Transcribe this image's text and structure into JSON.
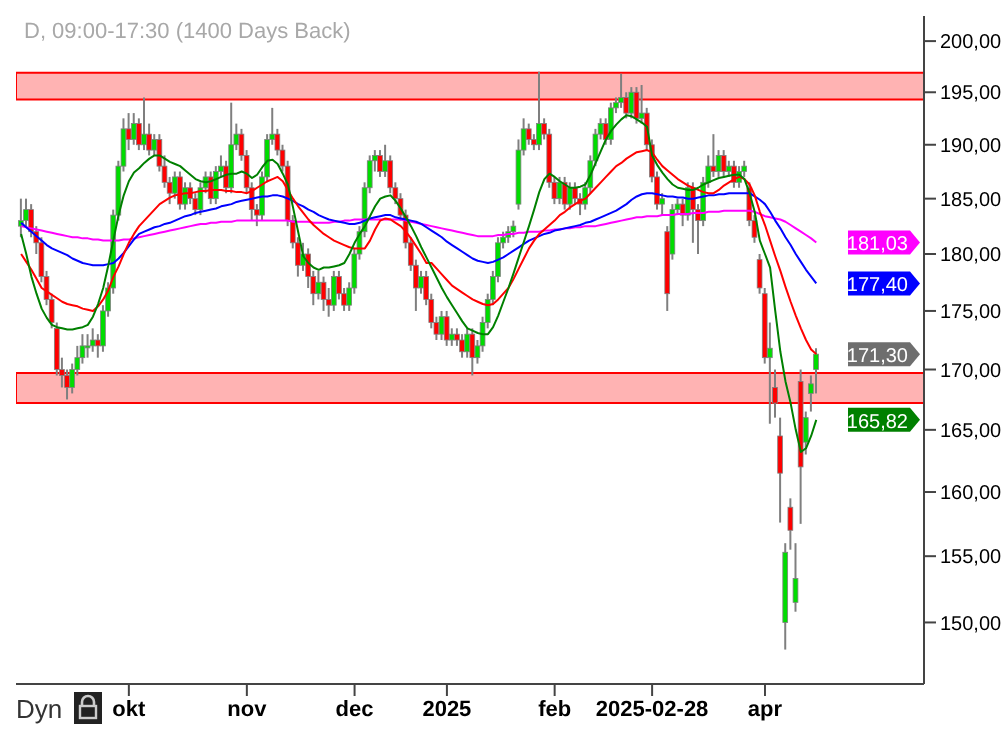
{
  "chart_data": {
    "type": "candlestick",
    "title": "D, 09:00-17:30 (1400 Days Back)",
    "categories": [
      null,
      null,
      null,
      null,
      null,
      null,
      null,
      null,
      null,
      null,
      null,
      null,
      null,
      null,
      null,
      null,
      null,
      null,
      null,
      null,
      null,
      "okt",
      null,
      null,
      null,
      null,
      null,
      null,
      null,
      null,
      null,
      null,
      null,
      null,
      null,
      null,
      null,
      null,
      null,
      null,
      null,
      null,
      null,
      null,
      "nov",
      null,
      null,
      null,
      null,
      null,
      null,
      null,
      null,
      null,
      null,
      null,
      null,
      null,
      null,
      null,
      null,
      null,
      null,
      null,
      null,
      "dec",
      null,
      null,
      null,
      null,
      null,
      null,
      null,
      null,
      null,
      null,
      null,
      null,
      null,
      null,
      null,
      null,
      null,
      "2025",
      null,
      null,
      null,
      null,
      null,
      null,
      null,
      null,
      null,
      null,
      null,
      null,
      null,
      null,
      null,
      null,
      null,
      null,
      null,
      null,
      "feb",
      null,
      null,
      null,
      null,
      null,
      null,
      null,
      null,
      null,
      null,
      null,
      null,
      null,
      null,
      null,
      null,
      null,
      null,
      "2025-02-28",
      null,
      null,
      null,
      null,
      null,
      null,
      null,
      null,
      null,
      null,
      null,
      null,
      null,
      null,
      null,
      null,
      null,
      null,
      null,
      null,
      null,
      "apr",
      null,
      null,
      null,
      null,
      null,
      null,
      null,
      null,
      null,
      null
    ],
    "ohlc": [
      [
        182.5,
        185,
        181.5,
        183
      ],
      [
        183,
        185,
        182.5,
        184
      ],
      [
        184,
        184.5,
        181.5,
        182
      ],
      [
        182,
        182.5,
        180,
        181
      ],
      [
        181,
        181.5,
        177.5,
        178
      ],
      [
        178,
        178.5,
        175.5,
        176
      ],
      [
        176,
        176.5,
        173.5,
        174
      ],
      [
        173.5,
        174,
        169.5,
        170
      ],
      [
        170,
        171,
        168.5,
        169.5
      ],
      [
        169.5,
        170,
        167.5,
        168.5
      ],
      [
        168.5,
        170.5,
        168,
        170
      ],
      [
        170,
        172,
        169.5,
        171
      ],
      [
        171,
        173,
        170.5,
        172
      ],
      [
        172,
        173,
        171,
        172
      ],
      [
        172,
        173.5,
        171.5,
        172.5
      ],
      [
        172.5,
        173,
        171,
        172
      ],
      [
        172,
        175.5,
        171.5,
        175
      ],
      [
        175,
        177.5,
        174.5,
        177
      ],
      [
        177,
        184,
        176.5,
        183.5
      ],
      [
        183.5,
        188.5,
        183,
        188
      ],
      [
        188,
        192.5,
        187.5,
        191.5
      ],
      [
        191.5,
        193,
        189.5,
        190.5
      ],
      [
        190.5,
        193,
        190,
        192
      ],
      [
        192,
        192.5,
        189.5,
        190
      ],
      [
        190,
        194.5,
        189.5,
        191
      ],
      [
        191,
        192,
        189,
        189.5
      ],
      [
        189.5,
        191,
        189,
        190.5
      ],
      [
        190.5,
        191,
        187.5,
        188
      ],
      [
        188,
        189,
        186,
        186.5
      ],
      [
        186.5,
        187,
        184.5,
        185.5
      ],
      [
        185.5,
        187.5,
        185,
        187
      ],
      [
        187,
        187.5,
        184,
        184.5
      ],
      [
        184.5,
        186.5,
        184,
        186
      ],
      [
        186,
        186.5,
        184.5,
        185
      ],
      [
        185,
        185.5,
        183.5,
        184
      ],
      [
        184,
        186.5,
        183.5,
        186
      ],
      [
        186,
        187.5,
        185.5,
        187
      ],
      [
        187,
        187.5,
        184.5,
        185
      ],
      [
        185,
        188,
        184.5,
        187.5
      ],
      [
        187.5,
        189,
        187,
        188
      ],
      [
        188,
        188.5,
        185.5,
        186
      ],
      [
        186,
        194,
        185.5,
        190
      ],
      [
        190,
        192,
        189.5,
        191
      ],
      [
        191,
        191.5,
        188.5,
        189
      ],
      [
        189,
        189.5,
        185.5,
        186
      ],
      [
        186,
        186.5,
        183,
        184
      ],
      [
        184,
        184.5,
        182.5,
        183.5
      ],
      [
        183.5,
        187.5,
        183,
        187
      ],
      [
        187,
        191,
        186.5,
        190.5
      ],
      [
        190.5,
        193.5,
        190,
        191
      ],
      [
        191,
        191.5,
        189,
        189.5
      ],
      [
        189.5,
        190,
        187.5,
        188
      ],
      [
        188,
        188.5,
        182.5,
        183
      ],
      [
        183,
        183.5,
        180.5,
        181
      ],
      [
        181,
        181.5,
        178,
        179
      ],
      [
        179,
        181,
        178.5,
        180
      ],
      [
        180,
        180.5,
        177,
        178
      ],
      [
        178,
        178.5,
        175.5,
        176.5
      ],
      [
        176.5,
        178.5,
        176,
        177.5
      ],
      [
        177.5,
        178,
        175,
        176
      ],
      [
        176,
        177,
        174.5,
        175.5
      ],
      [
        175.5,
        178.5,
        175,
        178
      ],
      [
        178,
        178.5,
        176,
        176.5
      ],
      [
        176.5,
        177,
        175,
        175.5
      ],
      [
        175.5,
        177.5,
        175,
        177
      ],
      [
        177,
        180.5,
        176.5,
        180
      ],
      [
        180,
        182.5,
        179.5,
        182
      ],
      [
        182,
        186.5,
        181.5,
        186
      ],
      [
        186,
        189,
        185.5,
        188.5
      ],
      [
        188.5,
        189.5,
        187.5,
        189
      ],
      [
        189,
        189.5,
        187,
        187.5
      ],
      [
        187.5,
        190,
        187,
        188.5
      ],
      [
        188.5,
        189,
        185.5,
        186
      ],
      [
        186,
        186.5,
        184.5,
        185
      ],
      [
        185,
        185.5,
        183,
        183.5
      ],
      [
        183.5,
        184,
        180.5,
        181
      ],
      [
        181,
        181.5,
        178.5,
        179
      ],
      [
        179,
        179.5,
        175,
        177
      ],
      [
        177,
        178.5,
        176.5,
        178
      ],
      [
        178,
        178.5,
        175.5,
        176
      ],
      [
        176,
        176.5,
        173.5,
        174
      ],
      [
        174,
        174.5,
        172.5,
        173
      ],
      [
        173,
        175,
        172.5,
        174.5
      ],
      [
        174.5,
        175,
        172,
        172.5
      ],
      [
        172.5,
        173.5,
        172,
        173
      ],
      [
        173,
        173.5,
        172,
        172.5
      ],
      [
        172.5,
        173,
        171,
        171.5
      ],
      [
        171.5,
        173.5,
        171,
        173
      ],
      [
        173,
        173.5,
        169.5,
        171
      ],
      [
        171,
        172.5,
        170.5,
        172
      ],
      [
        172,
        174.5,
        171.5,
        174
      ],
      [
        174,
        176.5,
        173.5,
        176
      ],
      [
        176,
        178.5,
        175.5,
        178
      ],
      [
        178,
        181.5,
        177.5,
        181
      ],
      [
        181,
        182,
        180.5,
        181.5
      ],
      [
        181.5,
        182.5,
        181,
        182
      ],
      [
        182,
        183,
        181.5,
        182.5
      ],
      [
        184.5,
        190.5,
        184,
        189.5
      ],
      [
        189.5,
        192.5,
        189,
        191.5
      ],
      [
        191.5,
        192,
        190,
        190.5
      ],
      [
        190.5,
        191,
        189.5,
        190
      ],
      [
        190,
        197,
        189.5,
        192
      ],
      [
        192,
        192.5,
        190.5,
        191
      ],
      [
        191,
        191.5,
        186,
        186.5
      ],
      [
        186.5,
        187,
        184.5,
        185
      ],
      [
        185,
        187,
        184.5,
        186.5
      ],
      [
        186.5,
        187,
        184,
        184.5
      ],
      [
        184.5,
        186.5,
        184,
        186
      ],
      [
        186,
        186.5,
        184.5,
        185
      ],
      [
        185,
        185.5,
        183.5,
        184.5
      ],
      [
        184.5,
        186.5,
        184,
        186
      ],
      [
        186,
        189,
        185.5,
        188.5
      ],
      [
        188.5,
        191.5,
        188,
        191
      ],
      [
        191,
        192.5,
        190.5,
        192
      ],
      [
        192,
        192.5,
        190,
        190.5
      ],
      [
        190.5,
        194,
        190,
        193.5
      ],
      [
        193.5,
        194.5,
        193,
        194
      ],
      [
        194,
        196.8,
        193.5,
        194.5
      ],
      [
        194.5,
        195,
        192.5,
        193
      ],
      [
        193,
        195.5,
        192.5,
        195
      ],
      [
        195,
        195.5,
        192,
        192.5
      ],
      [
        192.5,
        195.7,
        192,
        193
      ],
      [
        193,
        193.5,
        189.5,
        190
      ],
      [
        190,
        190.5,
        186.5,
        187
      ],
      [
        187,
        187.5,
        184,
        184.5
      ],
      [
        184.5,
        185.5,
        183.5,
        185
      ],
      [
        182,
        182.5,
        175,
        176.5
      ],
      [
        180,
        184.5,
        179.5,
        184
      ],
      [
        184,
        185,
        183.5,
        184.5
      ],
      [
        184.5,
        185,
        182.5,
        183.5
      ],
      [
        183.5,
        186.5,
        183,
        186
      ],
      [
        186,
        186.5,
        181,
        184
      ],
      [
        184,
        184.5,
        180,
        183
      ],
      [
        183,
        187,
        182.5,
        186.5
      ],
      [
        186.5,
        189,
        186,
        188
      ],
      [
        188,
        191,
        187,
        187.5
      ],
      [
        187.5,
        189.5,
        187,
        189
      ],
      [
        189,
        189.5,
        187,
        187.5
      ],
      [
        187.5,
        188.5,
        187,
        188
      ],
      [
        188,
        188.5,
        186,
        186.5
      ],
      [
        186.5,
        188,
        186,
        187.5
      ],
      [
        187.5,
        188.5,
        187,
        188
      ],
      [
        186,
        186.5,
        182.5,
        183
      ],
      [
        183,
        183.5,
        181,
        181.5
      ],
      [
        179.5,
        180,
        176.5,
        177
      ],
      [
        176.5,
        177,
        170.5,
        171
      ],
      [
        171,
        174,
        165.5,
        171.8
      ],
      [
        168.5,
        170,
        166,
        167.2
      ],
      [
        164.5,
        166,
        157.6,
        161.5
      ],
      [
        150,
        156,
        148,
        155.3
      ],
      [
        158.8,
        159.5,
        155.5,
        157
      ],
      [
        151.5,
        156,
        150.8,
        153.3
      ],
      [
        169,
        170,
        157.5,
        162
      ],
      [
        164,
        166.5,
        163,
        166
      ],
      [
        168,
        169.5,
        166.5,
        168.8
      ],
      [
        170,
        171.8,
        168,
        171.3
      ]
    ],
    "series": [
      {
        "type": "line",
        "color": "#ff00ff",
        "values": [
          182.5,
          182.4,
          182.3,
          182.2,
          182.1,
          182,
          181.9,
          181.8,
          181.7,
          181.6,
          181.5,
          181.5,
          181.4,
          181.4,
          181.3,
          181.3,
          181.2,
          181.2,
          181.2,
          181.2,
          181.3,
          181.3,
          181.4,
          181.5,
          181.6,
          181.7,
          181.8,
          181.9,
          182,
          182.1,
          182.2,
          182.3,
          182.4,
          182.5,
          182.6,
          182.7,
          182.7,
          182.8,
          182.8,
          182.9,
          182.9,
          182.9,
          183,
          183,
          183,
          183,
          183,
          183,
          183,
          183,
          183,
          183,
          183,
          182.9,
          182.9,
          182.9,
          182.9,
          182.8,
          182.8,
          182.8,
          182.8,
          182.9,
          182.9,
          183,
          183,
          183.1,
          183.1,
          183.1,
          183.1,
          183.1,
          183.1,
          183.1,
          183.1,
          183.1,
          183.1,
          183,
          182.9,
          182.8,
          182.7,
          182.6,
          182.5,
          182.4,
          182.3,
          182.2,
          182.1,
          182,
          181.9,
          181.8,
          181.7,
          181.6,
          181.6,
          181.6,
          181.6,
          181.7,
          181.7,
          181.8,
          181.8,
          181.9,
          181.9,
          182,
          182,
          182,
          182.1,
          182.1,
          182.2,
          182.2,
          182.3,
          182.3,
          182.4,
          182.4,
          182.5,
          182.5,
          182.5,
          182.6,
          182.7,
          182.8,
          182.9,
          183,
          183.1,
          183.2,
          183.3,
          183.3,
          183.4,
          183.4,
          183.4,
          183.5,
          183.5,
          183.5,
          183.6,
          183.6,
          183.6,
          183.7,
          183.7,
          183.7,
          183.8,
          183.8,
          183.8,
          183.9,
          183.9,
          183.9,
          183.9,
          183.9,
          183.9,
          183.8,
          183.6,
          183.4,
          183.3,
          183.2,
          183.1,
          182.9,
          182.6,
          182.3,
          182,
          181.7,
          181.4,
          181.03
        ],
        "value_labels": [
          null,
          null,
          null,
          null,
          null,
          null,
          null,
          null,
          null,
          null,
          null,
          null,
          null,
          null,
          null,
          null,
          null,
          null,
          null,
          null,
          null,
          null,
          null,
          null,
          null,
          null,
          null,
          null,
          null,
          null,
          null,
          null,
          null,
          null,
          null,
          null,
          null,
          null,
          null,
          null,
          null,
          null,
          null,
          null,
          null,
          null,
          null,
          null,
          null,
          null,
          null,
          null,
          null,
          null,
          null,
          null,
          null,
          null,
          null,
          null,
          null,
          null,
          null,
          null,
          null,
          null,
          null,
          null,
          null,
          null,
          null,
          null,
          null,
          null,
          null,
          null,
          null,
          null,
          null,
          null,
          null,
          null,
          null,
          null,
          null,
          null,
          null,
          null,
          null,
          null,
          null,
          null,
          null,
          null,
          null,
          null,
          null,
          null,
          null,
          null,
          null,
          null,
          null,
          null,
          null,
          null,
          null,
          null,
          null,
          null,
          null,
          null,
          null,
          null,
          null,
          null,
          null,
          null,
          null,
          null,
          null,
          null,
          null,
          null,
          null,
          null,
          null,
          null,
          null,
          null,
          null,
          null,
          null,
          null,
          null,
          null,
          null,
          null,
          null,
          null,
          null,
          null,
          null,
          null,
          null,
          null,
          null,
          null,
          null,
          null,
          null,
          null,
          null,
          null,
          null,
          "181,03"
        ]
      },
      {
        "type": "line",
        "color": "#0000ff",
        "values": [
          182.8,
          182.4,
          182,
          181.6,
          181.2,
          180.8,
          180.5,
          180.3,
          180.1,
          179.9,
          179.6,
          179.4,
          179.2,
          179.1,
          179,
          179,
          179,
          179.1,
          179.2,
          179.6,
          180.1,
          180.7,
          181.3,
          181.8,
          182,
          182.2,
          182.4,
          182.5,
          182.7,
          182.8,
          183,
          183.2,
          183.4,
          183.5,
          183.7,
          183.8,
          183.9,
          184,
          184.1,
          184.3,
          184.4,
          184.5,
          184.7,
          184.8,
          184.9,
          185,
          185.1,
          185.2,
          185.2,
          185.3,
          185.3,
          185.2,
          185,
          184.8,
          184.5,
          184.3,
          184,
          183.8,
          183.5,
          183.3,
          183.1,
          183,
          182.9,
          182.8,
          182.7,
          182.7,
          182.8,
          183,
          183.2,
          183.3,
          183.4,
          183.5,
          183.5,
          183.3,
          183.2,
          183.1,
          183,
          182.9,
          182.7,
          182.4,
          182.1,
          181.8,
          181.5,
          181.1,
          180.8,
          180.5,
          180.2,
          179.9,
          179.6,
          179.4,
          179.3,
          179.2,
          179.3,
          179.5,
          179.7,
          180,
          180.3,
          180.6,
          180.9,
          181.2,
          181.4,
          181.6,
          181.8,
          181.9,
          182.1,
          182.2,
          182.3,
          182.4,
          182.5,
          182.6,
          182.8,
          182.9,
          183.1,
          183.3,
          183.5,
          183.7,
          183.9,
          184.2,
          184.5,
          184.9,
          185.2,
          185.4,
          185.5,
          185.5,
          185.4,
          185.3,
          185.2,
          185.2,
          185.1,
          185.1,
          185,
          185,
          185.1,
          185.2,
          185.3,
          185.3,
          185.4,
          185.4,
          185.5,
          185.5,
          185.5,
          185.5,
          185.5,
          185.2,
          184.9,
          184.5,
          183.8,
          183,
          182.3,
          181.5,
          180.8,
          180,
          179.3,
          178.6,
          178,
          177.4
        ],
        "value_labels": [
          null,
          null,
          null,
          null,
          null,
          null,
          null,
          null,
          null,
          null,
          null,
          null,
          null,
          null,
          null,
          null,
          null,
          null,
          null,
          null,
          null,
          null,
          null,
          null,
          null,
          null,
          null,
          null,
          null,
          null,
          null,
          null,
          null,
          null,
          null,
          null,
          null,
          null,
          null,
          null,
          null,
          null,
          null,
          null,
          null,
          null,
          null,
          null,
          null,
          null,
          null,
          null,
          null,
          null,
          null,
          null,
          null,
          null,
          null,
          null,
          null,
          null,
          null,
          null,
          null,
          null,
          null,
          null,
          null,
          null,
          null,
          null,
          null,
          null,
          null,
          null,
          null,
          null,
          null,
          null,
          null,
          null,
          null,
          null,
          null,
          null,
          null,
          null,
          null,
          null,
          null,
          null,
          null,
          null,
          null,
          null,
          null,
          null,
          null,
          null,
          null,
          null,
          null,
          null,
          null,
          null,
          null,
          null,
          null,
          null,
          null,
          null,
          null,
          null,
          null,
          null,
          null,
          null,
          null,
          null,
          null,
          null,
          null,
          null,
          null,
          null,
          null,
          null,
          null,
          null,
          null,
          null,
          null,
          null,
          null,
          null,
          null,
          null,
          null,
          null,
          null,
          null,
          null,
          null,
          null,
          null,
          null,
          null,
          null,
          null,
          null,
          null,
          null,
          null,
          null,
          "177,40"
        ]
      },
      {
        "type": "line",
        "color": "#ff0000",
        "values": [
          180,
          179.3,
          178.6,
          177.8,
          177,
          176.7,
          176.4,
          176.1,
          175.8,
          175.6,
          175.5,
          175.4,
          175.2,
          175.1,
          175,
          175.4,
          176,
          176.8,
          178,
          178.9,
          180,
          181,
          181.8,
          182.5,
          183,
          183.5,
          184,
          184.5,
          184.8,
          185.1,
          185.3,
          185.4,
          185.5,
          185.5,
          185.6,
          185.7,
          185.7,
          185.8,
          185.8,
          185.8,
          185.7,
          185.7,
          185.6,
          185.6,
          185.5,
          185.7,
          186,
          186.3,
          186.6,
          186.8,
          187,
          186.6,
          185.8,
          185,
          184.3,
          183.7,
          183.1,
          182.6,
          182.2,
          181.8,
          181.5,
          181.2,
          181,
          180.8,
          180.6,
          180.5,
          180.5,
          180.5,
          181.2,
          182.2,
          183,
          183.2,
          183.1,
          182.8,
          182.5,
          182,
          181.4,
          180.7,
          180,
          179.2,
          179.2,
          178.7,
          178.2,
          177.7,
          177.2,
          176.9,
          176.6,
          176.3,
          176,
          175.8,
          175.6,
          175.5,
          175.6,
          176,
          176.5,
          177,
          177.8,
          178.7,
          179.6,
          180.5,
          181.2,
          181.8,
          182.2,
          182.6,
          183,
          183.5,
          183.8,
          184.2,
          184.5,
          184.8,
          185,
          185.5,
          186,
          186.5,
          187,
          187.5,
          188,
          188.3,
          188.7,
          189,
          189.3,
          189.4,
          189.5,
          189.3,
          188.6,
          188,
          187.6,
          187.2,
          186.8,
          186.5,
          186.2,
          186,
          185.8,
          185.6,
          185.5,
          185.5,
          185.8,
          186.2,
          186.5,
          186.8,
          187,
          186.8,
          186.3,
          185.3,
          183.8,
          182.6,
          181.2,
          179.8,
          178.5,
          177.1,
          175.8,
          174.6,
          173.5,
          172.5,
          171.7,
          171.3
        ]
      },
      {
        "type": "line",
        "color": "#008000",
        "values": [
          181.8,
          180,
          178,
          176.5,
          175.2,
          174.4,
          173.8,
          173.6,
          173.5,
          173.4,
          173.4,
          173.5,
          173.6,
          173.8,
          174.5,
          175.6,
          177,
          179,
          181.3,
          183.5,
          185.3,
          186.6,
          187.4,
          187.8,
          188.3,
          188.7,
          189,
          189,
          188.7,
          188.4,
          188.2,
          188,
          187.6,
          187.2,
          186.8,
          186.6,
          186.5,
          186.6,
          186.8,
          187,
          187.2,
          187.3,
          187.3,
          187.5,
          187.3,
          186.9,
          187.2,
          187.9,
          188.5,
          188.6,
          188.2,
          187.3,
          186.3,
          184.2,
          182,
          179.8,
          179.2,
          178.8,
          178.6,
          178.8,
          178.8,
          178.9,
          179,
          179.2,
          180,
          181,
          181.8,
          182.5,
          183.4,
          184.3,
          185,
          185.2,
          185.3,
          184.8,
          184.1,
          183.3,
          182.5,
          181.6,
          180.6,
          179.7,
          178.8,
          177.9,
          177,
          176.2,
          175.5,
          174.8,
          174.1,
          173.5,
          173.3,
          173.1,
          173,
          173,
          173.6,
          174.6,
          175.8,
          177,
          178.3,
          179.7,
          181.1,
          182.5,
          184,
          185.6,
          186.8,
          187.3,
          187,
          186.6,
          186.3,
          186,
          186,
          186.1,
          186.3,
          187.2,
          188.3,
          189.4,
          190.5,
          191.3,
          191.9,
          192.4,
          192.8,
          192.7,
          192.4,
          192.1,
          191.7,
          189,
          188.1,
          187.4,
          186.8,
          186.3,
          186,
          185.9,
          185.8,
          185.8,
          186,
          186.3,
          186.5,
          186.7,
          186.9,
          187,
          187.1,
          187.2,
          187.2,
          186.8,
          185.5,
          183.8,
          181.2,
          180,
          178.8,
          175,
          171.5,
          169,
          167.2,
          165,
          163.2,
          163.5,
          164.5,
          165.82
        ],
        "value_labels": [
          null,
          null,
          null,
          null,
          null,
          null,
          null,
          null,
          null,
          null,
          null,
          null,
          null,
          null,
          null,
          null,
          null,
          null,
          null,
          null,
          null,
          null,
          null,
          null,
          null,
          null,
          null,
          null,
          null,
          null,
          null,
          null,
          null,
          null,
          null,
          null,
          null,
          null,
          null,
          null,
          null,
          null,
          null,
          null,
          null,
          null,
          null,
          null,
          null,
          null,
          null,
          null,
          null,
          null,
          null,
          null,
          null,
          null,
          null,
          null,
          null,
          null,
          null,
          null,
          null,
          null,
          null,
          null,
          null,
          null,
          null,
          null,
          null,
          null,
          null,
          null,
          null,
          null,
          null,
          null,
          null,
          null,
          null,
          null,
          null,
          null,
          null,
          null,
          null,
          null,
          null,
          null,
          null,
          null,
          null,
          null,
          null,
          null,
          null,
          null,
          null,
          null,
          null,
          null,
          null,
          null,
          null,
          null,
          null,
          null,
          null,
          null,
          null,
          null,
          null,
          null,
          null,
          null,
          null,
          null,
          null,
          null,
          null,
          null,
          null,
          null,
          null,
          null,
          null,
          null,
          null,
          null,
          null,
          null,
          null,
          null,
          null,
          null,
          null,
          null,
          null,
          null,
          null,
          null,
          null,
          null,
          null,
          null,
          null,
          null,
          null,
          null,
          null,
          null,
          null,
          "165,82"
        ]
      }
    ],
    "bands": [
      {
        "axis": "y",
        "from": 194.3,
        "to": 196.9,
        "color": "#ffb3b3"
      },
      {
        "axis": "y",
        "from": 167.2,
        "to": 169.7,
        "color": "#ffb3b3"
      }
    ],
    "annotations": [
      "Dyn"
    ],
    "value_labels": [
      null,
      null,
      null,
      null,
      null,
      null,
      null,
      null,
      null,
      null,
      null,
      null,
      null,
      null,
      null,
      null,
      null,
      null,
      null,
      null,
      null,
      null,
      null,
      null,
      null,
      null,
      null,
      null,
      null,
      null,
      null,
      null,
      null,
      null,
      null,
      null,
      null,
      null,
      null,
      null,
      null,
      null,
      null,
      null,
      null,
      null,
      null,
      null,
      null,
      null,
      null,
      null,
      null,
      null,
      null,
      null,
      null,
      null,
      null,
      null,
      null,
      null,
      null,
      null,
      null,
      null,
      null,
      null,
      null,
      null,
      null,
      null,
      null,
      null,
      null,
      null,
      null,
      null,
      null,
      null,
      null,
      null,
      null,
      null,
      null,
      null,
      null,
      null,
      null,
      null,
      null,
      null,
      null,
      null,
      null,
      null,
      null,
      null,
      null,
      null,
      null,
      null,
      null,
      null,
      null,
      null,
      null,
      null,
      null,
      null,
      null,
      null,
      null,
      null,
      null,
      null,
      null,
      null,
      null,
      null,
      null,
      null,
      null,
      null,
      null,
      null,
      null,
      null,
      null,
      null,
      null,
      null,
      null,
      null,
      null,
      null,
      null,
      null,
      null,
      null,
      null,
      null,
      null,
      null,
      null,
      null,
      null,
      null,
      null,
      null,
      null,
      null,
      null,
      null,
      null,
      "171,30"
    ],
    "log": true,
    "ylim": [
      145.5,
      202.5
    ],
    "yticks": [
      {
        "value": 150,
        "label": "150,00"
      },
      {
        "value": 155,
        "label": "155,00"
      },
      {
        "value": 160,
        "label": "160,00"
      },
      {
        "value": 165,
        "label": "165,00"
      },
      {
        "value": 170,
        "label": "170,00"
      },
      {
        "value": 175,
        "label": "175,00"
      },
      {
        "value": 180,
        "label": "180,00"
      },
      {
        "value": 185,
        "label": "185,00"
      },
      {
        "value": 190,
        "label": "190,00"
      },
      {
        "value": 195,
        "label": "195,00"
      },
      {
        "value": 200,
        "label": "200,00"
      }
    ]
  }
}
